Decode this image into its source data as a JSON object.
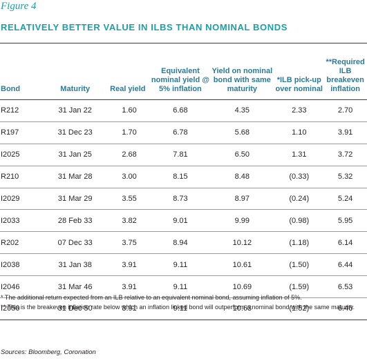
{
  "figure_label": "Figure 4",
  "title": "RELATIVELY BETTER VALUE IN ILBS THAN NOMINAL BONDS",
  "headers": {
    "bond": "Bond",
    "maturity": "Maturity",
    "real_yield": "Real yield",
    "equivalent": "Equivalent nominal yield @ 5% inflation",
    "yield_on": "Yield on nominal bond with same maturity",
    "pickup": "*ILB pick-up over nominal",
    "required": "**Required ILB breakeven inflation"
  },
  "rows": [
    {
      "bond": "R212",
      "maturity": "31 Jan 22",
      "real_yield": "1.60",
      "equivalent": "6.68",
      "yield_on": "4.35",
      "pickup": "2.33",
      "required": "2.70"
    },
    {
      "bond": "R197",
      "maturity": "31 Dec 23",
      "real_yield": "1.70",
      "equivalent": "6.78",
      "yield_on": "5.68",
      "pickup": "1.10",
      "required": "3.91"
    },
    {
      "bond": "I2025",
      "maturity": "31 Jan 25",
      "real_yield": "2.68",
      "equivalent": "7.81",
      "yield_on": "6.50",
      "pickup": "1.31",
      "required": "3.72"
    },
    {
      "bond": "R210",
      "maturity": "31 Mar 28",
      "real_yield": "3.00",
      "equivalent": "8.15",
      "yield_on": "8.48",
      "pickup": "(0.33)",
      "required": "5.32"
    },
    {
      "bond": "I2029",
      "maturity": "31 Mar 29",
      "real_yield": "3.55",
      "equivalent": "8.73",
      "yield_on": "8.97",
      "pickup": "(0.24)",
      "required": "5.24"
    },
    {
      "bond": "I2033",
      "maturity": "28 Feb 33",
      "real_yield": "3.82",
      "equivalent": "9.01",
      "yield_on": "9.99",
      "pickup": "(0.98)",
      "required": "5.95"
    },
    {
      "bond": "R202",
      "maturity": "07 Dec 33",
      "real_yield": "3.75",
      "equivalent": "8.94",
      "yield_on": "10.12",
      "pickup": "(1.18)",
      "required": "6.14"
    },
    {
      "bond": "I2038",
      "maturity": "31 Jan 38",
      "real_yield": "3.91",
      "equivalent": "9.11",
      "yield_on": "10.61",
      "pickup": "(1.50)",
      "required": "6.44"
    },
    {
      "bond": "I2046",
      "maturity": "31 Mar 46",
      "real_yield": "3.91",
      "equivalent": "9.11",
      "yield_on": "10.69",
      "pickup": "(1.59)",
      "required": "6.53"
    },
    {
      "bond": "I2050",
      "maturity": "31 Dec 50",
      "real_yield": "3.91",
      "equivalent": "9.11",
      "yield_on": "10.63",
      "pickup": "(1.52)",
      "required": "6.46"
    }
  ],
  "notes": [
    "* The additional return expected from an ILB relative to an equivalent nominal bond, assuming inflation of 5%.",
    "** This is the breakeven inflation rate below which an inflation linked bond will outperform a nominal bond with the same maturity."
  ],
  "source": "Sources: Bloomberg, Coronation",
  "colors": {
    "accent": "#1aa0a6",
    "header_text": "#2a7a99",
    "body_text": "#231f20"
  }
}
